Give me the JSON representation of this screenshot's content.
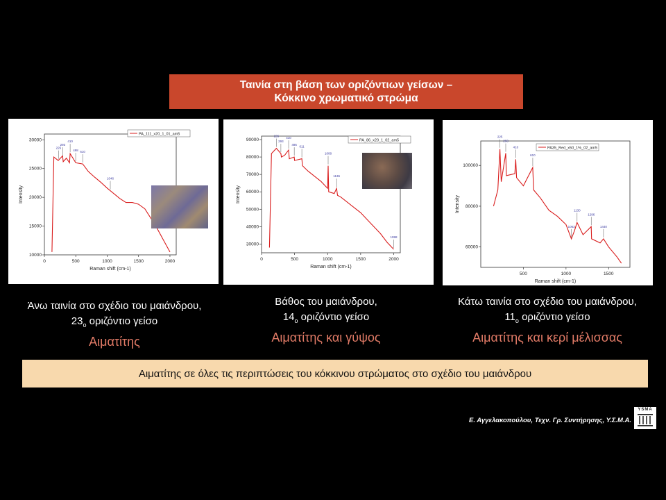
{
  "title": {
    "line1": "Ταινία στη βάση των οριζόντιων γείσων –",
    "line2": "Κόκκινο χρωματικό στρώμα"
  },
  "captions": [
    {
      "line1": "Άνω ταινία στο σχέδιο του μαιάνδρου,",
      "num": "23",
      "sup": "ο",
      "line2_rest": "οριζόντιο γείσο",
      "mineral": "Αιματίτης"
    },
    {
      "line1": "Βάθος του μαιάνδρου,",
      "num": "14",
      "sup": "ο",
      "line2_rest": "οριζόντιο γείσο",
      "mineral": "Αιματίτης και γύψος"
    },
    {
      "line1": "Κάτω ταινία στο σχέδιο του μαιάνδρου,",
      "num": "11",
      "sup": "ο",
      "line2_rest": "οριζόντιο γείσο",
      "mineral": "Αιματίτης και κερί μέλισσας"
    }
  ],
  "summary": "Αιματίτης σε όλες τις περιπτώσεις του κόκκινου στρώματος στο σχέδιο του μαιάνδρου",
  "credit": "Ε. Αγγελακοπούλου, Τεχν. Γρ. Συντήρησης, Υ.Σ.Μ.Α.",
  "logo_text": "YSMA",
  "colors": {
    "title_bg": "#c9472c",
    "mineral_text": "#e07a66",
    "summary_bg": "#f8d9ad",
    "spectrum": "#d91c1c"
  },
  "chart_data": [
    {
      "type": "line",
      "legend": "PA_111_x20_1_01_am5",
      "xlabel": "Raman shift (cm-1)",
      "ylabel": "Intensity",
      "xlim": [
        0,
        2100
      ],
      "ylim": [
        10000,
        31000
      ],
      "xticks": [
        0,
        500,
        1000,
        1500,
        2000
      ],
      "yticks": [
        10000,
        15000,
        20000,
        25000,
        30000
      ],
      "x": [
        120,
        150,
        220,
        290,
        300,
        350,
        400,
        410,
        500,
        610,
        700,
        800,
        900,
        1000,
        1100,
        1200,
        1300,
        1400,
        1500,
        1600,
        1700,
        1800,
        1900,
        2000
      ],
      "y": [
        10500,
        27000,
        26400,
        27200,
        26200,
        26800,
        26000,
        27600,
        26000,
        25800,
        24500,
        23500,
        22600,
        21600,
        20700,
        19800,
        19100,
        19100,
        18800,
        18000,
        16300,
        14500,
        12500,
        10500
      ],
      "peaks": [
        {
          "x": 225,
          "label": "226"
        },
        {
          "x": 292,
          "label": "293"
        },
        {
          "x": 410,
          "label": "410"
        },
        {
          "x": 498,
          "label": "498"
        },
        {
          "x": 610,
          "label": "610"
        },
        {
          "x": 1050,
          "label": "1046"
        }
      ]
    },
    {
      "type": "line",
      "legend": "PA_86_x20_1_02_am5",
      "xlabel": "Raman shift (cm-1)",
      "ylabel": "Intensity",
      "xlim": [
        0,
        2100
      ],
      "ylim": [
        25000,
        92000
      ],
      "xticks": [
        0,
        500,
        1000,
        1500,
        2000
      ],
      "yticks": [
        30000,
        40000,
        50000,
        60000,
        70000,
        80000,
        90000
      ],
      "x": [
        120,
        150,
        225,
        293,
        300,
        350,
        410,
        420,
        495,
        500,
        610,
        620,
        700,
        800,
        900,
        1000,
        1008,
        1016,
        1100,
        1136,
        1150,
        1200,
        1300,
        1400,
        1500,
        1600,
        1700,
        1800,
        1900,
        2000
      ],
      "y": [
        28000,
        82000,
        85000,
        82000,
        80000,
        81000,
        84000,
        79000,
        80000,
        78000,
        79000,
        75000,
        72000,
        69000,
        66000,
        62000,
        75000,
        60000,
        59000,
        62000,
        58000,
        57000,
        54000,
        51000,
        48000,
        44000,
        40000,
        36000,
        31000,
        27000
      ],
      "peaks": [
        {
          "x": 225,
          "label": "226"
        },
        {
          "x": 293,
          "label": "293"
        },
        {
          "x": 410,
          "label": "410"
        },
        {
          "x": 495,
          "label": "495"
        },
        {
          "x": 610,
          "label": "611"
        },
        {
          "x": 1008,
          "label": "1008"
        },
        {
          "x": 1136,
          "label": "1136"
        },
        {
          "x": 2000,
          "label": "1998"
        }
      ]
    },
    {
      "type": "line",
      "legend": "PA35_Red_x50_1%_02_am5",
      "xlabel": "Raman shift (cm-1)",
      "ylabel": "Intensity",
      "xlim": [
        0,
        1750
      ],
      "ylim": [
        50000,
        112000
      ],
      "xticks": [
        500,
        1000,
        1500
      ],
      "yticks": [
        60000,
        80000,
        100000
      ],
      "x": [
        150,
        200,
        225,
        240,
        293,
        300,
        400,
        410,
        420,
        500,
        610,
        620,
        700,
        800,
        900,
        1000,
        1063,
        1100,
        1130,
        1200,
        1296,
        1300,
        1400,
        1440,
        1500,
        1600,
        1650
      ],
      "y": [
        80000,
        88000,
        108000,
        92000,
        106000,
        95000,
        96000,
        103000,
        94000,
        90000,
        99000,
        88000,
        84000,
        78000,
        75000,
        71000,
        64000,
        68000,
        72000,
        66000,
        70000,
        64000,
        62000,
        64000,
        60000,
        55000,
        52000
      ],
      "peaks": [
        {
          "x": 225,
          "label": "225"
        },
        {
          "x": 293,
          "label": "293"
        },
        {
          "x": 410,
          "label": "410"
        },
        {
          "x": 610,
          "label": "610"
        },
        {
          "x": 1063,
          "label": "1063"
        },
        {
          "x": 1130,
          "label": "1130"
        },
        {
          "x": 1296,
          "label": "1296"
        },
        {
          "x": 1440,
          "label": "1440"
        }
      ]
    }
  ]
}
